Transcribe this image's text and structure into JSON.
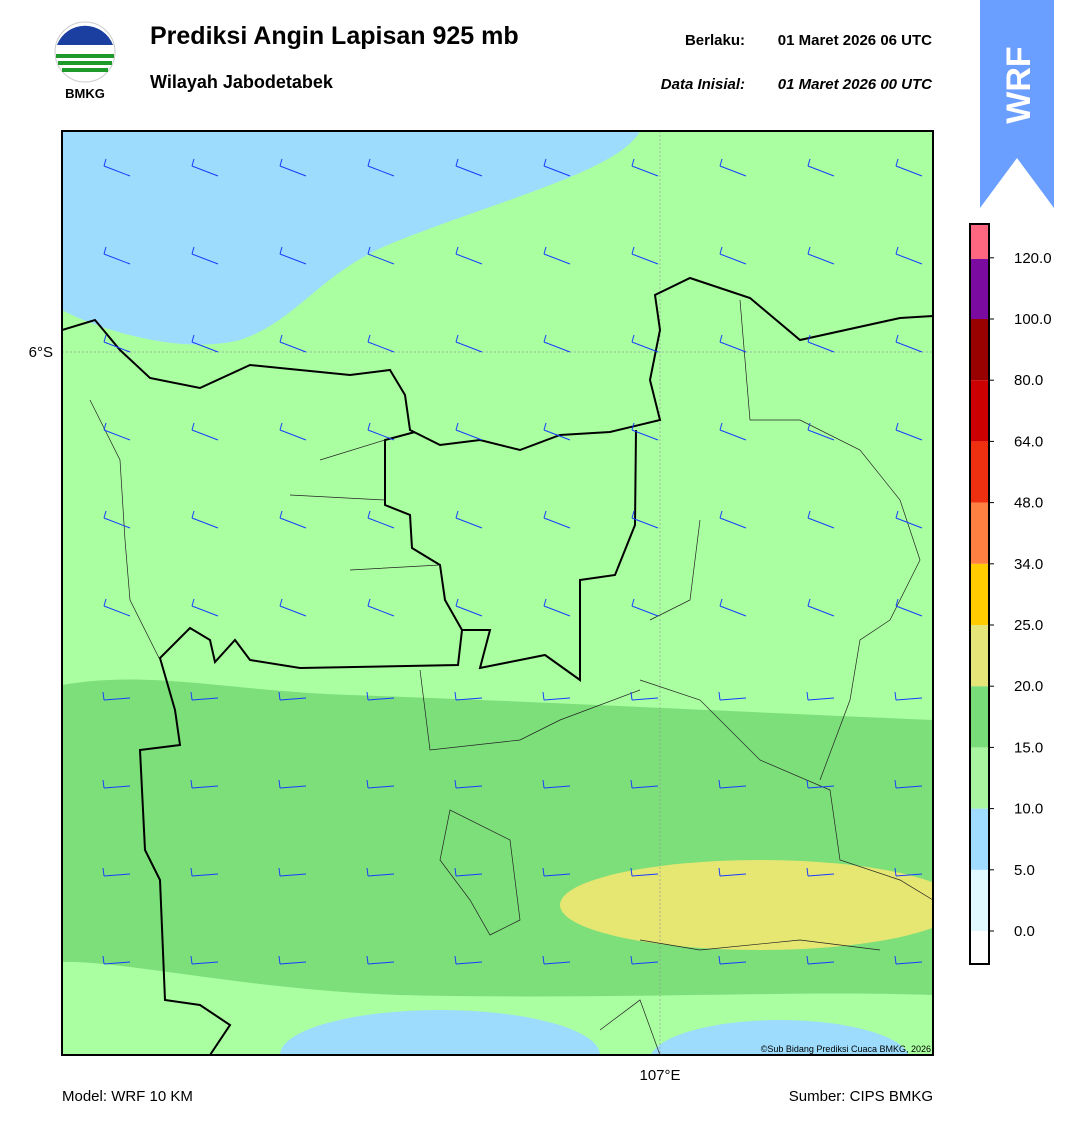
{
  "header": {
    "logo_text": "BMKG",
    "title": "Prediksi Angin Lapisan 925 mb",
    "subtitle": "Wilayah Jabodetabek",
    "valid_label": "Berlaku:",
    "valid_time": "01 Maret 2026 06 UTC",
    "init_label": "Data Inisial:",
    "init_time": "01 Maret 2026 00 UTC",
    "badge": "WRF"
  },
  "map": {
    "lat_label": "6°S",
    "lon_label": "107°E",
    "copyright": "©Sub Bidang Prediksi Cuaca BMKG, 2026"
  },
  "colorbar": {
    "colors": [
      "#ffffff",
      "#e0f8ff",
      "#a0dcff",
      "#aaf5a0",
      "#78dc78",
      "#e6e678",
      "#ffcc00",
      "#ff8040",
      "#ee3010",
      "#cc0000",
      "#990000",
      "#7a0aa0",
      "#ff6680"
    ],
    "labels": [
      "0.0",
      "5.0",
      "10.0",
      "15.0",
      "20.0",
      "25.0",
      "34.0",
      "48.0",
      "64.0",
      "80.0",
      "100.0",
      "120.0"
    ]
  },
  "footer": {
    "model": "Model: WRF 10 KM",
    "source": "Sumber: CIPS BMKG"
  }
}
